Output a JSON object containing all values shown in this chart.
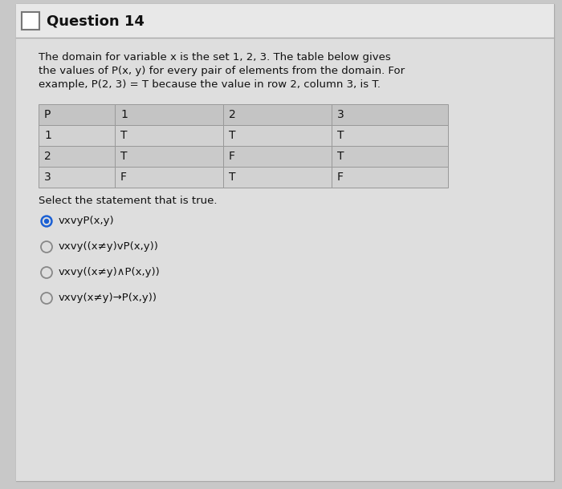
{
  "title": "Question 14",
  "description_lines": [
    "The domain for variable x is the set 1, 2, 3. The table below gives",
    "the values of P(x, y) for every pair of elements from the domain. For",
    "example, P(2, 3) = T because the value in row 2, column 3, is T."
  ],
  "table_headers": [
    "P",
    "1",
    "2",
    "3"
  ],
  "table_rows": [
    [
      "1",
      "T",
      "T",
      "T"
    ],
    [
      "2",
      "T",
      "F",
      "T"
    ],
    [
      "3",
      "F",
      "T",
      "F"
    ]
  ],
  "select_label": "Select the statement that is true.",
  "options": [
    "vxvyP(x,y)",
    "vxvy((x≠y)vP(x,y))",
    "vxvy((x≠y)∧P(x,y))",
    "vxvy(x≠y)→P(x,y))"
  ],
  "selected_option": 0,
  "outer_bg": "#c8c8c8",
  "card_bg": "#e8e8e8",
  "title_bg": "#e8e8e8",
  "content_bg": "#e0e0e0",
  "table_header_bg": "#c0c0c0",
  "table_row1_bg": "#d4d4d4",
  "table_row2_bg": "#cccccc",
  "selected_color": "#1a5fd4",
  "text_color": "#111111",
  "border_color": "#aaaaaa"
}
